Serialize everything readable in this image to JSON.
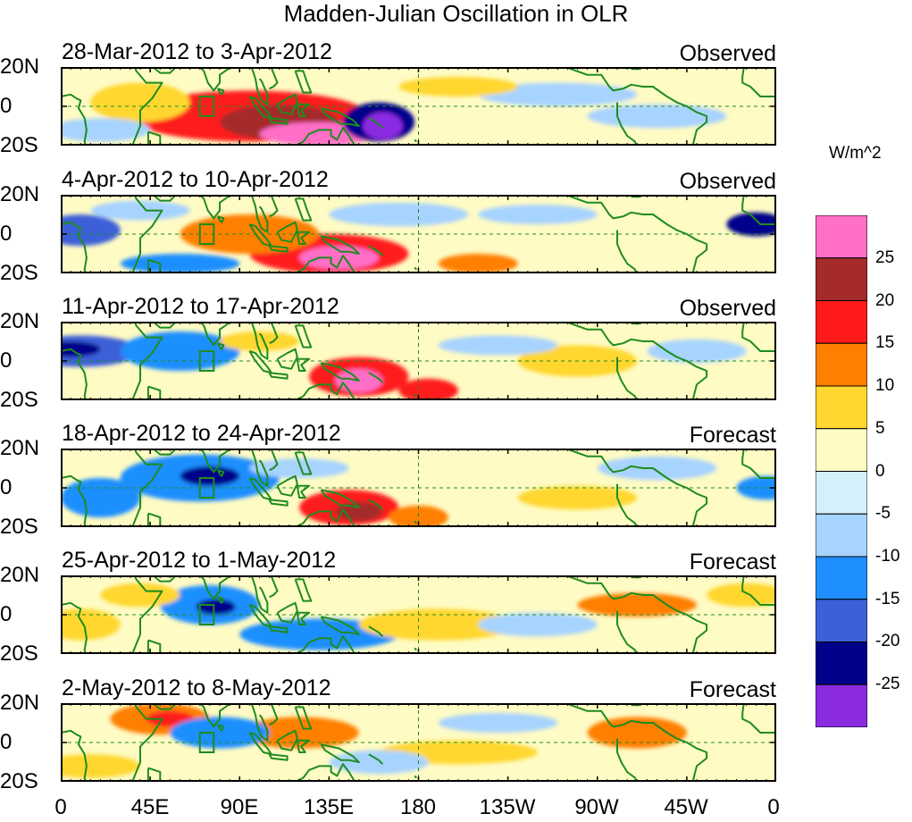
{
  "title": "Madden-Julian Oscillation in OLR",
  "units": "W/m^2",
  "panels": [
    {
      "date_range": "28-Mar-2012 to 3-Apr-2012",
      "status": "Observed"
    },
    {
      "date_range": "4-Apr-2012 to 10-Apr-2012",
      "status": "Observed"
    },
    {
      "date_range": "11-Apr-2012 to 17-Apr-2012",
      "status": "Observed"
    },
    {
      "date_range": "18-Apr-2012 to 24-Apr-2012",
      "status": "Forecast"
    },
    {
      "date_range": "25-Apr-2012 to 1-May-2012",
      "status": "Forecast"
    },
    {
      "date_range": "2-May-2012 to 8-May-2012",
      "status": "Forecast"
    }
  ],
  "lat_labels": [
    "20N",
    "0",
    "20S"
  ],
  "lon_labels": [
    "0",
    "45E",
    "90E",
    "135E",
    "180",
    "135W",
    "90W",
    "45W",
    "0"
  ],
  "colorbar": {
    "levels": [
      "25",
      "20",
      "15",
      "10",
      "5",
      "0",
      "-5",
      "-10",
      "-15",
      "-20",
      "-25"
    ],
    "colors": [
      "#ff6ec7",
      "#a52a2a",
      "#ff1a1a",
      "#ff7f00",
      "#ffd72e",
      "#fffbc4",
      "#d4f1fb",
      "#a7d3ff",
      "#1f8fff",
      "#3c60d8",
      "#00008b",
      "#8a2be2"
    ]
  },
  "map_colors": {
    "pos1": "#fffbc4",
    "pos2": "#ffd72e",
    "pos3": "#ff7f00",
    "pos4": "#ff1a1a",
    "pos5": "#a52a2a",
    "pos6": "#ff6ec7",
    "neg1": "#d4f1fb",
    "neg2": "#a7d3ff",
    "neg3": "#1f8fff",
    "neg4": "#3c60d8",
    "neg5": "#00008b",
    "neg6": "#8a2be2",
    "coast": "#1e8c1e"
  },
  "anomaly_features": [
    [
      {
        "lon": 95,
        "lat": -5,
        "wlon": 60,
        "wlat": 13,
        "level": 4
      },
      {
        "lon": 110,
        "lat": -8,
        "wlon": 30,
        "wlat": 9,
        "level": 5
      },
      {
        "lon": 130,
        "lat": -14,
        "wlon": 30,
        "wlat": 6,
        "level": 6
      },
      {
        "lon": 40,
        "lat": 2,
        "wlon": 25,
        "wlat": 10,
        "level": 2
      },
      {
        "lon": 160,
        "lat": -8,
        "wlon": 18,
        "wlat": 10,
        "level": -5
      },
      {
        "lon": 162,
        "lat": -10,
        "wlon": 10,
        "wlat": 7,
        "level": -6
      },
      {
        "lon": 250,
        "lat": 6,
        "wlon": 40,
        "wlat": 6,
        "level": -2
      },
      {
        "lon": 200,
        "lat": 10,
        "wlon": 30,
        "wlat": 5,
        "level": 2
      },
      {
        "lon": 300,
        "lat": -5,
        "wlon": 35,
        "wlat": 6,
        "level": -2
      },
      {
        "lon": 20,
        "lat": -12,
        "wlon": 25,
        "wlat": 6,
        "level": -2
      }
    ],
    [
      {
        "lon": 135,
        "lat": -10,
        "wlon": 40,
        "wlat": 10,
        "level": 4
      },
      {
        "lon": 140,
        "lat": -12,
        "wlon": 20,
        "wlat": 6,
        "level": 6
      },
      {
        "lon": 95,
        "lat": 0,
        "wlon": 35,
        "wlat": 10,
        "level": 3
      },
      {
        "lon": 60,
        "lat": -15,
        "wlon": 30,
        "wlat": 5,
        "level": -3
      },
      {
        "lon": 10,
        "lat": 2,
        "wlon": 20,
        "wlat": 8,
        "level": -4
      },
      {
        "lon": 350,
        "lat": 5,
        "wlon": 15,
        "wlat": 6,
        "level": -5
      },
      {
        "lon": 210,
        "lat": -15,
        "wlon": 20,
        "wlat": 5,
        "level": 3
      },
      {
        "lon": 240,
        "lat": 10,
        "wlon": 30,
        "wlat": 5,
        "level": -2
      },
      {
        "lon": 40,
        "lat": 12,
        "wlon": 25,
        "wlat": 5,
        "level": -2
      },
      {
        "lon": 170,
        "lat": 10,
        "wlon": 35,
        "wlat": 6,
        "level": -2
      }
    ],
    [
      {
        "lon": 150,
        "lat": -8,
        "wlon": 25,
        "wlat": 10,
        "level": 4
      },
      {
        "lon": 150,
        "lat": -10,
        "wlon": 12,
        "wlat": 6,
        "level": 6
      },
      {
        "lon": 10,
        "lat": 5,
        "wlon": 30,
        "wlat": 8,
        "level": -4
      },
      {
        "lon": 5,
        "lat": 6,
        "wlon": 15,
        "wlat": 4,
        "level": -5
      },
      {
        "lon": 60,
        "lat": 5,
        "wlon": 30,
        "wlat": 10,
        "level": -3
      },
      {
        "lon": 185,
        "lat": -15,
        "wlon": 15,
        "wlat": 6,
        "level": 4
      },
      {
        "lon": 100,
        "lat": 10,
        "wlon": 20,
        "wlat": 5,
        "level": 2
      },
      {
        "lon": 260,
        "lat": 0,
        "wlon": 30,
        "wlat": 8,
        "level": 2
      },
      {
        "lon": 220,
        "lat": 8,
        "wlon": 30,
        "wlat": 5,
        "level": -2
      },
      {
        "lon": 320,
        "lat": 5,
        "wlon": 25,
        "wlat": 6,
        "level": -2
      }
    ],
    [
      {
        "lon": 70,
        "lat": 5,
        "wlon": 40,
        "wlat": 12,
        "level": -3
      },
      {
        "lon": 75,
        "lat": 6,
        "wlon": 15,
        "wlat": 5,
        "level": -5
      },
      {
        "lon": 20,
        "lat": -5,
        "wlon": 20,
        "wlat": 10,
        "level": -3
      },
      {
        "lon": 145,
        "lat": -10,
        "wlon": 25,
        "wlat": 9,
        "level": 4
      },
      {
        "lon": 150,
        "lat": -12,
        "wlon": 12,
        "wlat": 5,
        "level": 5
      },
      {
        "lon": 180,
        "lat": -15,
        "wlon": 15,
        "wlat": 6,
        "level": 3
      },
      {
        "lon": 120,
        "lat": 10,
        "wlon": 25,
        "wlat": 5,
        "level": -2
      },
      {
        "lon": 260,
        "lat": -5,
        "wlon": 30,
        "wlat": 6,
        "level": 2
      },
      {
        "lon": 300,
        "lat": 10,
        "wlon": 30,
        "wlat": 6,
        "level": -2
      },
      {
        "lon": 355,
        "lat": 0,
        "wlon": 15,
        "wlat": 6,
        "level": -3
      }
    ],
    [
      {
        "lon": 75,
        "lat": 5,
        "wlon": 25,
        "wlat": 10,
        "level": -3
      },
      {
        "lon": 78,
        "lat": 4,
        "wlon": 10,
        "wlat": 4,
        "level": -5
      },
      {
        "lon": 40,
        "lat": 10,
        "wlon": 20,
        "wlat": 6,
        "level": 2
      },
      {
        "lon": 130,
        "lat": -10,
        "wlon": 40,
        "wlat": 8,
        "level": -3
      },
      {
        "lon": 190,
        "lat": -5,
        "wlon": 40,
        "wlat": 8,
        "level": 2
      },
      {
        "lon": 290,
        "lat": 5,
        "wlon": 30,
        "wlat": 6,
        "level": 3
      },
      {
        "lon": 240,
        "lat": -5,
        "wlon": 30,
        "wlat": 6,
        "level": -2
      },
      {
        "lon": 345,
        "lat": 10,
        "wlon": 20,
        "wlat": 6,
        "level": 2
      },
      {
        "lon": 10,
        "lat": -5,
        "wlon": 20,
        "wlat": 8,
        "level": 2
      }
    ],
    [
      {
        "lon": 50,
        "lat": 12,
        "wlon": 25,
        "wlat": 8,
        "level": 3
      },
      {
        "lon": 55,
        "lat": 12,
        "wlon": 12,
        "wlat": 4,
        "level": 4
      },
      {
        "lon": 120,
        "lat": 5,
        "wlon": 30,
        "wlat": 8,
        "level": 3
      },
      {
        "lon": 80,
        "lat": 5,
        "wlon": 25,
        "wlat": 8,
        "level": -3
      },
      {
        "lon": 290,
        "lat": 5,
        "wlon": 25,
        "wlat": 8,
        "level": 3
      },
      {
        "lon": 200,
        "lat": -5,
        "wlon": 40,
        "wlat": 6,
        "level": 2
      },
      {
        "lon": 220,
        "lat": 10,
        "wlon": 30,
        "wlat": 5,
        "level": -2
      },
      {
        "lon": 160,
        "lat": -10,
        "wlon": 25,
        "wlat": 6,
        "level": -2
      },
      {
        "lon": 15,
        "lat": -12,
        "wlon": 25,
        "wlat": 6,
        "level": 2
      }
    ]
  ]
}
